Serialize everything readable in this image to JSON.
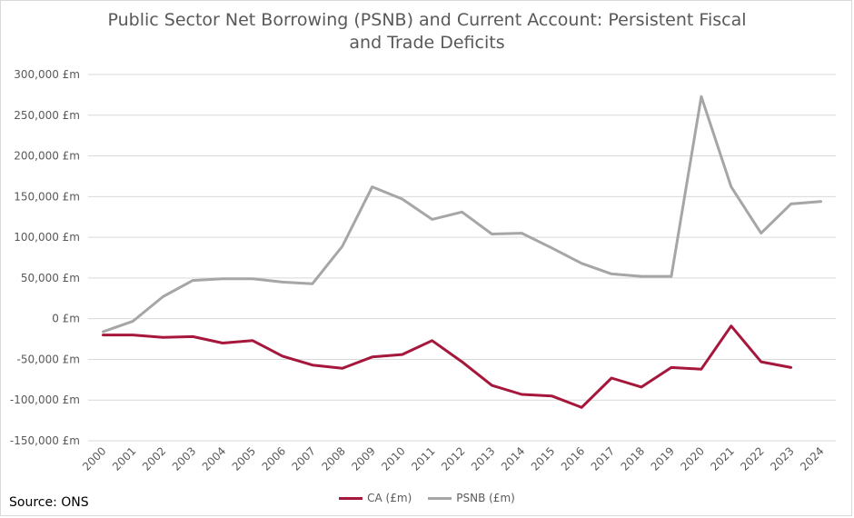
{
  "chart_data": {
    "type": "line",
    "title_lines": [
      "Public Sector Net Borrowing (PSNB) and Current Account: Persistent Fiscal",
      "and Trade Deficits"
    ],
    "x": [
      "2000",
      "2001",
      "2002",
      "2003",
      "2004",
      "2005",
      "2006",
      "2007",
      "2008",
      "2009",
      "2010",
      "2011",
      "2012",
      "2013",
      "2014",
      "2015",
      "2016",
      "2017",
      "2018",
      "2019",
      "2020",
      "2021",
      "2022",
      "2023",
      "2024"
    ],
    "y_ticks": [
      300000,
      250000,
      200000,
      150000,
      100000,
      50000,
      0,
      -50000,
      -100000,
      -150000
    ],
    "y_tick_labels": [
      "300,000 £m",
      "250,000 £m",
      "200,000 £m",
      "150,000 £m",
      "100,000 £m",
      "50,000 £m",
      "0 £m",
      "-50,000 £m",
      "-100,000 £m",
      "-150,000 £m"
    ],
    "ylim": [
      -150000,
      300000
    ],
    "grid": true,
    "legend_position": "bottom",
    "series": [
      {
        "name": "CA (£m)",
        "color": "#a6173c",
        "values": [
          -20000,
          -20000,
          -23000,
          -22000,
          -30000,
          -27000,
          -46000,
          -57000,
          -61000,
          -47000,
          -44000,
          -27000,
          -53000,
          -82000,
          -93000,
          -95000,
          -109000,
          -73000,
          -84000,
          -60000,
          -62000,
          -9000,
          -53000,
          -60000,
          null
        ]
      },
      {
        "name": "PSNB (£m)",
        "color": "#a6a6a6",
        "values": [
          -16000,
          -3000,
          27000,
          47000,
          49000,
          49000,
          45000,
          43000,
          89000,
          162000,
          147000,
          122000,
          131000,
          104000,
          105000,
          87000,
          68000,
          55000,
          52000,
          52000,
          273000,
          162000,
          105000,
          141000,
          144000
        ]
      }
    ]
  },
  "source": "Source: ONS"
}
